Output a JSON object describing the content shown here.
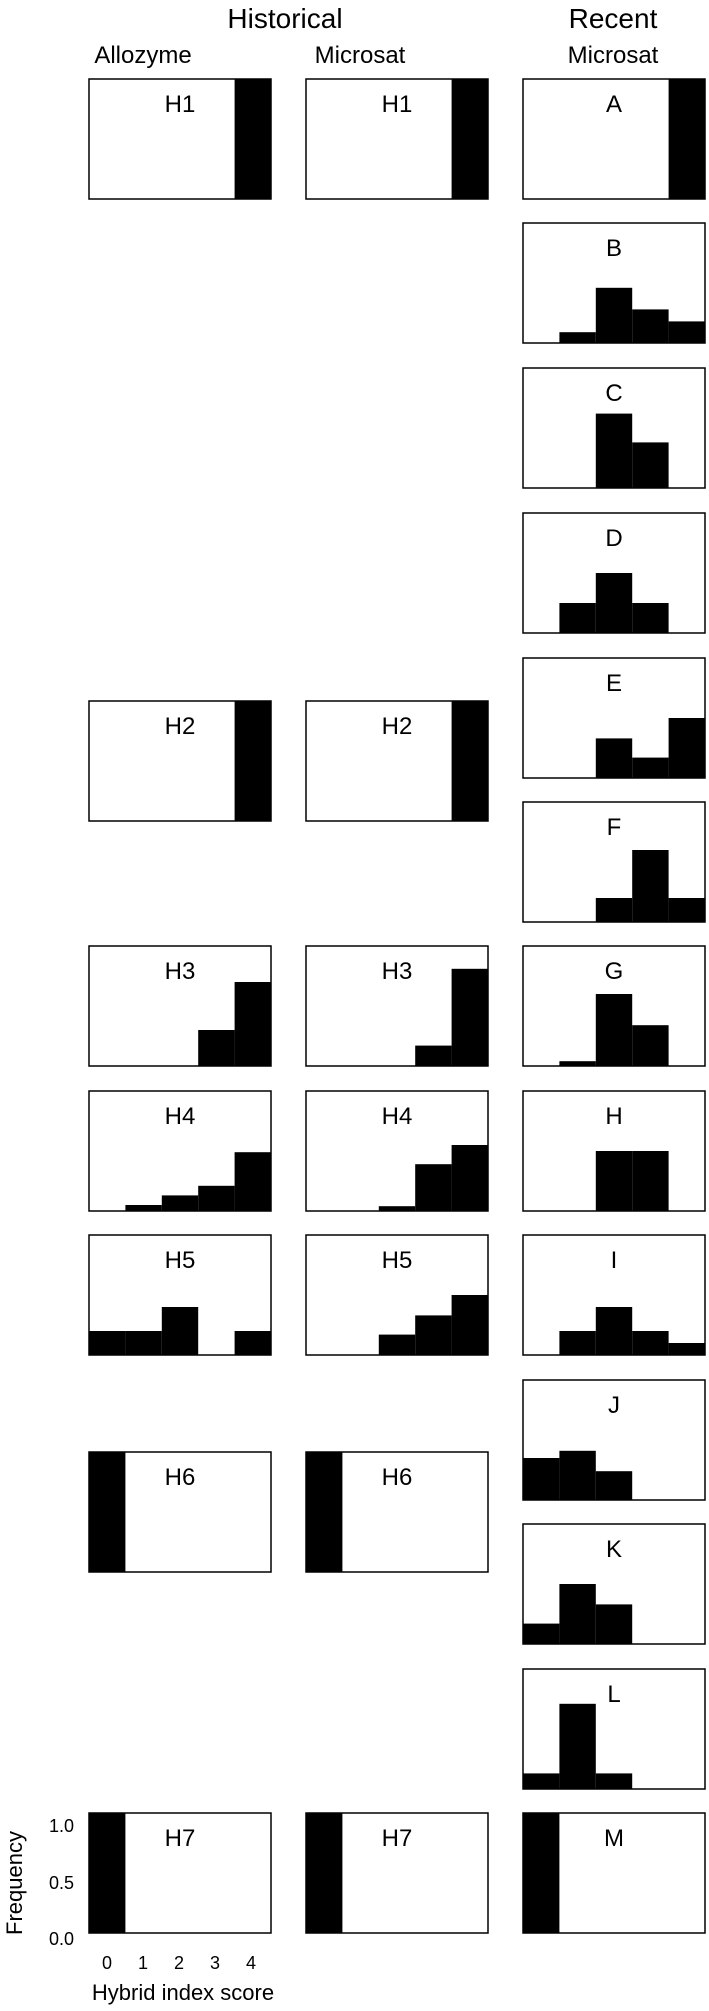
{
  "headers": {
    "historical": "Historical",
    "recent": "Recent",
    "allozyme": "Allozyme",
    "microsat_hist": "Microsat",
    "microsat_recent": "Microsat"
  },
  "chart_data": {
    "type": "bar",
    "description_note": "",
    "x": [
      0,
      1,
      2,
      3,
      4
    ],
    "xlabel": "Hybrid index score",
    "ylabel": "Frequency",
    "ylim": [
      0,
      1
    ],
    "yticks": [
      "0.0",
      "0.5",
      "1.0"
    ],
    "xticks": [
      "0",
      "1",
      "2",
      "3",
      "4"
    ],
    "panels": [
      {
        "label": "H1",
        "column": "Allozyme",
        "values": [
          0,
          0,
          0,
          0,
          1.0
        ]
      },
      {
        "label": "H1",
        "column": "Microsat",
        "values": [
          0,
          0,
          0,
          0,
          1.0
        ]
      },
      {
        "label": "A",
        "column": "Recent Microsat",
        "values": [
          0,
          0,
          0,
          0,
          1.0
        ]
      },
      {
        "label": "B",
        "column": "Recent Microsat",
        "values": [
          0,
          0.09,
          0.46,
          0.28,
          0.18
        ]
      },
      {
        "label": "C",
        "column": "Recent Microsat",
        "values": [
          0,
          0,
          0.62,
          0.38,
          0
        ]
      },
      {
        "label": "D",
        "column": "Recent Microsat",
        "values": [
          0,
          0.25,
          0.5,
          0.25,
          0
        ]
      },
      {
        "label": "E",
        "column": "Recent Microsat",
        "values": [
          0,
          0,
          0.33,
          0.17,
          0.5
        ]
      },
      {
        "label": "F",
        "column": "Recent Microsat",
        "values": [
          0,
          0,
          0.2,
          0.6,
          0.2
        ]
      },
      {
        "label": "G",
        "column": "Recent Microsat",
        "values": [
          0,
          0.04,
          0.6,
          0.34,
          0
        ]
      },
      {
        "label": "H",
        "column": "Recent Microsat",
        "values": [
          0,
          0,
          0.5,
          0.5,
          0
        ]
      },
      {
        "label": "I",
        "column": "Recent Microsat",
        "values": [
          0,
          0.2,
          0.4,
          0.2,
          0.1
        ]
      },
      {
        "label": "J",
        "column": "Recent Microsat",
        "values": [
          0.35,
          0.41,
          0.24,
          0,
          0
        ]
      },
      {
        "label": "K",
        "column": "Recent Microsat",
        "values": [
          0.17,
          0.5,
          0.33,
          0,
          0
        ]
      },
      {
        "label": "L",
        "column": "Recent Microsat",
        "values": [
          0.13,
          0.71,
          0.13,
          0,
          0
        ]
      },
      {
        "label": "H2",
        "column": "Allozyme",
        "values": [
          0,
          0,
          0,
          0,
          1.0
        ]
      },
      {
        "label": "H2",
        "column": "Microsat",
        "values": [
          0,
          0,
          0,
          0,
          1.0
        ]
      },
      {
        "label": "H3",
        "column": "Allozyme",
        "values": [
          0,
          0,
          0,
          0.3,
          0.7
        ]
      },
      {
        "label": "H3",
        "column": "Microsat",
        "values": [
          0,
          0,
          0,
          0.17,
          0.81
        ]
      },
      {
        "label": "H4",
        "column": "Allozyme",
        "values": [
          0,
          0.05,
          0.13,
          0.21,
          0.49
        ]
      },
      {
        "label": "H4",
        "column": "Microsat",
        "values": [
          0,
          0,
          0.04,
          0.39,
          0.55
        ]
      },
      {
        "label": "H5",
        "column": "Allozyme",
        "values": [
          0.2,
          0.2,
          0.4,
          0,
          0.2
        ]
      },
      {
        "label": "H5",
        "column": "Microsat",
        "values": [
          0,
          0,
          0.17,
          0.33,
          0.5
        ]
      },
      {
        "label": "H6",
        "column": "Allozyme",
        "values": [
          1.0,
          0,
          0,
          0,
          0
        ]
      },
      {
        "label": "H6",
        "column": "Microsat",
        "values": [
          1.0,
          0,
          0,
          0,
          0
        ]
      },
      {
        "label": "H7",
        "column": "Allozyme",
        "values": [
          1.0,
          0,
          0,
          0,
          0
        ]
      },
      {
        "label": "H7",
        "column": "Microsat",
        "values": [
          1.0,
          0,
          0,
          0,
          0
        ]
      },
      {
        "label": "M",
        "column": "Recent Microsat",
        "values": [
          1.0,
          0,
          0,
          0,
          0
        ]
      }
    ]
  }
}
